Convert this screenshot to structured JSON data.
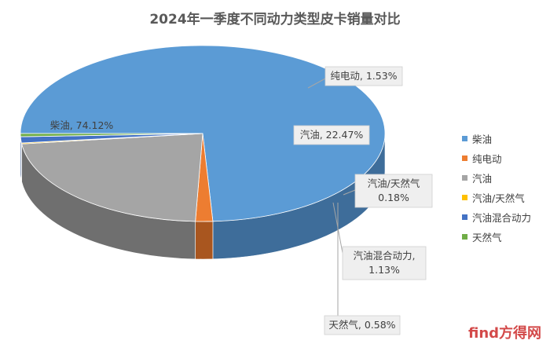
{
  "watermark": "find方得网",
  "chart_data": {
    "type": "pie",
    "title": "2024年一季度不同动力类型皮卡销量对比",
    "legend_position": "right",
    "slices": [
      {
        "name": "柴油",
        "value": 74.12,
        "label": "柴油, 74.12%",
        "color": "#5b9bd5",
        "side_color": "#3e6d9a"
      },
      {
        "name": "纯电动",
        "value": 1.53,
        "label": "纯电动, 1.53%",
        "color": "#ed7d31",
        "side_color": "#a9561f"
      },
      {
        "name": "汽油",
        "value": 22.47,
        "label": "汽油, 22.47%",
        "color": "#a5a5a5",
        "side_color": "#6f6f6f"
      },
      {
        "name": "汽油/天然气",
        "value": 0.18,
        "label": "汽油/天然气\n0.18%",
        "color": "#ffc000",
        "side_color": "#b08400"
      },
      {
        "name": "汽油混合动力",
        "value": 1.13,
        "label": "汽油混合动力,\n1.13%",
        "color": "#4472c4",
        "side_color": "#2d4e8a"
      },
      {
        "name": "天然气",
        "value": 0.58,
        "label": "天然气, 0.58%",
        "color": "#70ad47",
        "side_color": "#4c7a2e"
      }
    ]
  }
}
